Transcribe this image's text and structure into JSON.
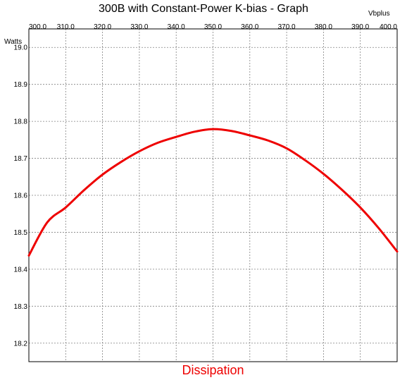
{
  "chart_data": {
    "type": "line",
    "title": "300B with Constant-Power K-bias - Graph",
    "xlabel": "Vbplus",
    "ylabel": "Watts",
    "xlim": [
      300.0,
      400.0
    ],
    "ylim": [
      18.15,
      19.05
    ],
    "x_ticks": [
      "300.0",
      "310.0",
      "320.0",
      "330.0",
      "340.0",
      "350.0",
      "360.0",
      "370.0",
      "380.0",
      "390.0",
      "400.0"
    ],
    "y_ticks": [
      "19.0",
      "18.9",
      "18.8",
      "18.7",
      "18.6",
      "18.5",
      "18.4",
      "18.3",
      "18.2"
    ],
    "grid": true,
    "series": [
      {
        "name": "Dissipation",
        "color": "#ee0000",
        "x": [
          300,
          305,
          310,
          315,
          320,
          325,
          330,
          335,
          340,
          345,
          350,
          355,
          360,
          365,
          370,
          375,
          380,
          385,
          390,
          395,
          400
        ],
        "y": [
          18.437,
          18.527,
          18.567,
          18.614,
          18.656,
          18.69,
          18.719,
          18.742,
          18.758,
          18.772,
          18.779,
          18.774,
          18.762,
          18.748,
          18.727,
          18.695,
          18.658,
          18.615,
          18.567,
          18.511,
          18.448
        ]
      }
    ]
  }
}
